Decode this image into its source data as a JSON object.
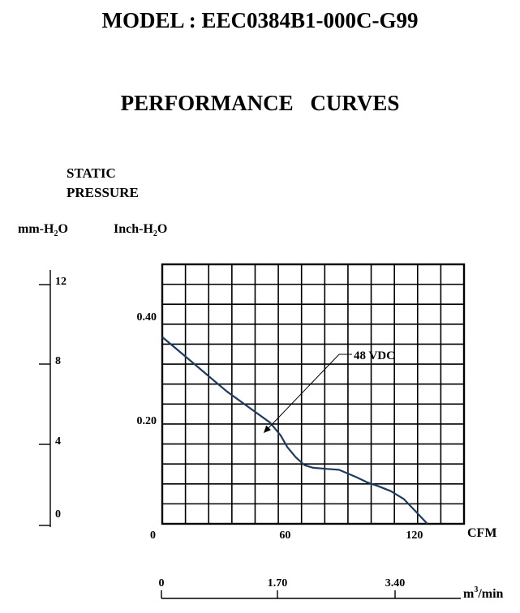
{
  "header": {
    "model": "MODEL : EEC0384B1-000C-G99",
    "subtitle": "PERFORMANCE    CURVES"
  },
  "chart_data": {
    "type": "line",
    "title": "PERFORMANCE CURVES",
    "ylabel_lines": [
      "STATIC",
      "PRESSURE"
    ],
    "yunit_mm": "mm-H2O",
    "yunit_inch": "Inch-H2O",
    "x_unit": "CFM",
    "x2_unit": "m3/min",
    "xlim": [
      0,
      140
    ],
    "ylim": [
      0,
      0.5
    ],
    "x_ticks": [
      "0",
      "60",
      "120"
    ],
    "y_ticks": [
      {
        "v": 0.4,
        "label": "0.40"
      },
      {
        "v": 0.2,
        "label": "0.20"
      }
    ],
    "mm_ticks": [
      "12",
      "8",
      "4",
      "0"
    ],
    "x2_ticks": [
      "0",
      "1.70",
      "3.40"
    ],
    "grid": true,
    "series": [
      {
        "name": "48 VDC",
        "color": "#1f3a60",
        "x": [
          0,
          10,
          20,
          30,
          40,
          50,
          55,
          58,
          62,
          66,
          70,
          76,
          82,
          86,
          90,
          95,
          100,
          106,
          112,
          118,
          123
        ],
        "y": [
          0.36,
          0.325,
          0.29,
          0.255,
          0.225,
          0.195,
          0.17,
          0.148,
          0.128,
          0.113,
          0.108,
          0.106,
          0.104,
          0.097,
          0.09,
          0.08,
          0.073,
          0.063,
          0.048,
          0.022,
          0.0
        ]
      }
    ],
    "annotation": {
      "text": "48 VDC",
      "target": {
        "x": 47,
        "y": 0.175
      }
    }
  }
}
